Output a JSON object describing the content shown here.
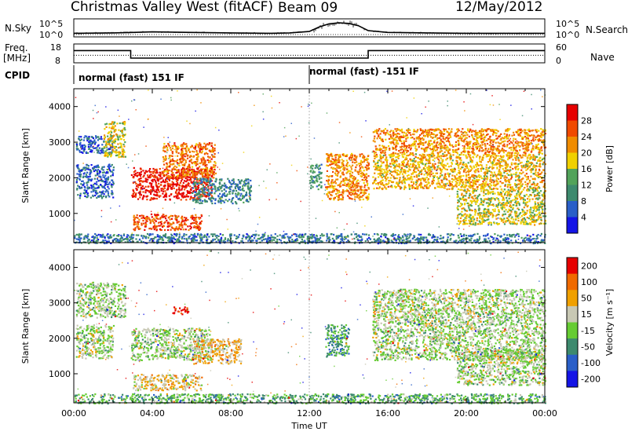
{
  "header": {
    "station": "Christmas Valley West (fitACF)",
    "beam": "Beam 09",
    "date": "12/May/2012"
  },
  "side_labels": {
    "nsky": "N.Sky",
    "freq_l1": "Freq.",
    "freq_l2": "[MHz]",
    "cpid": "CPID",
    "nsearch": "N.Search",
    "nave": "Nave"
  },
  "small_axes": {
    "noise_left_top": "10^5",
    "noise_left_bot": "10^0",
    "noise_right_top": "10^5",
    "noise_right_bot": "10^0",
    "freq_left_top": "18",
    "freq_left_bot": "8",
    "nave_right_top": "60",
    "nave_right_bot": "0"
  },
  "cpid_segments": [
    {
      "label": "normal (fast) 151 IF",
      "start_hour": 0,
      "end_hour": 12
    },
    {
      "label": "normal (fast) -151 IF",
      "start_hour": 12,
      "end_hour": 24
    }
  ],
  "colors": {
    "power_scale": [
      "#1414e6",
      "#2a5fc8",
      "#3d8a6e",
      "#52a35a",
      "#f0d000",
      "#f08c00",
      "#f04a00",
      "#e60000"
    ],
    "velocity_scale": [
      "#1414e6",
      "#2a5fc8",
      "#3d8a6e",
      "#66cc33",
      "#c8c8b4",
      "#f0a000",
      "#f06a00",
      "#e60000"
    ],
    "ground_scatter": "#c8c8b4"
  },
  "chart_data": [
    {
      "type": "line",
      "name": "noise",
      "x_unit": "hour",
      "xlim": [
        0,
        24
      ],
      "series": [
        {
          "name": "N.Sky",
          "x": [
            0,
            2,
            3,
            4,
            6,
            8,
            10,
            11,
            12,
            12.5,
            13,
            13.5,
            14,
            14.5,
            15,
            16,
            18,
            20,
            22,
            24
          ],
          "values": [
            0.2,
            0.22,
            0.25,
            0.28,
            0.25,
            0.22,
            0.2,
            0.22,
            0.3,
            0.55,
            0.72,
            0.78,
            0.75,
            0.62,
            0.35,
            0.25,
            0.22,
            0.2,
            0.2,
            0.2
          ]
        }
      ],
      "ylim": [
        0,
        1
      ],
      "left_ticks": [
        "10^5",
        "10^0"
      ],
      "right_ticks": [
        "10^5",
        "10^0"
      ]
    },
    {
      "type": "line",
      "name": "frequency",
      "x_unit": "hour",
      "xlim": [
        0,
        24
      ],
      "series": [
        {
          "name": "Freq.",
          "x": [
            0,
            2.9,
            2.9,
            15,
            15,
            24
          ],
          "values": [
            14.5,
            14.5,
            10.5,
            10.5,
            14.5,
            14.5
          ]
        },
        {
          "name": "Nave",
          "x": [
            0,
            24
          ],
          "values": [
            12,
            12
          ]
        }
      ],
      "ylim": [
        8,
        18
      ]
    },
    {
      "type": "heatmap",
      "name": "power",
      "xlabel": "",
      "ylabel": "Slant Range [km]",
      "xlim": [
        0,
        24
      ],
      "ylim": [
        180,
        4500
      ],
      "y_ticks": [
        1000,
        2000,
        3000,
        4000
      ],
      "x_ticks": [
        "00:00",
        "04:00",
        "08:00",
        "12:00",
        "16:00",
        "20:00",
        "00:00"
      ],
      "colorbar_label": "Power [dB]",
      "colorbar_ticks": [
        "4",
        "8",
        "12",
        "16",
        "20",
        "24",
        "28"
      ],
      "bands": [
        {
          "h0": 0.1,
          "h1": 2.0,
          "r0": 2700,
          "r1": 3200,
          "v": 0.2
        },
        {
          "h0": 1.5,
          "h1": 2.6,
          "r0": 2600,
          "r1": 3600,
          "v": 0.55
        },
        {
          "h0": 0.1,
          "h1": 2.0,
          "r0": 1450,
          "r1": 2400,
          "v": 0.2
        },
        {
          "h0": 2.9,
          "h1": 7.0,
          "r0": 1400,
          "r1": 2300,
          "v": 0.92
        },
        {
          "h0": 4.5,
          "h1": 7.2,
          "r0": 2000,
          "r1": 3000,
          "v": 0.75
        },
        {
          "h0": 3.0,
          "h1": 6.5,
          "r0": 550,
          "r1": 1000,
          "v": 0.82
        },
        {
          "h0": 6.0,
          "h1": 9.0,
          "r0": 1300,
          "r1": 2000,
          "v": 0.3
        },
        {
          "h0": 12.0,
          "h1": 12.6,
          "r0": 1700,
          "r1": 2400,
          "v": 0.35
        },
        {
          "h0": 12.8,
          "h1": 15.0,
          "r0": 1400,
          "r1": 2700,
          "v": 0.7
        },
        {
          "h0": 15.2,
          "h1": 24,
          "r0": 1700,
          "r1": 2700,
          "v": 0.62
        },
        {
          "h0": 15.2,
          "h1": 24,
          "r0": 2700,
          "r1": 3400,
          "v": 0.7
        },
        {
          "h0": 19.5,
          "h1": 24,
          "r0": 700,
          "r1": 1700,
          "v": 0.55
        },
        {
          "h0": 0,
          "h1": 24,
          "r0": 180,
          "r1": 450,
          "v": 0.25
        }
      ]
    },
    {
      "type": "heatmap",
      "name": "velocity",
      "xlabel": "Time UT",
      "ylabel": "Slant Range [km]",
      "xlim": [
        0,
        24
      ],
      "ylim": [
        180,
        4500
      ],
      "y_ticks": [
        1000,
        2000,
        3000,
        4000
      ],
      "x_ticks": [
        "00:00",
        "04:00",
        "08:00",
        "12:00",
        "16:00",
        "20:00",
        "00:00"
      ],
      "colorbar_label": "Velocity [m s⁻¹]",
      "colorbar_ticks": [
        "200",
        "100",
        "50",
        "15",
        "-15",
        "-50",
        "-100",
        "-200"
      ],
      "bands": [
        {
          "h0": 0.1,
          "h1": 2.6,
          "r0": 2600,
          "r1": 3600,
          "v": 0.5
        },
        {
          "h0": 0.1,
          "h1": 2.0,
          "r0": 1450,
          "r1": 2400,
          "v": 0.5
        },
        {
          "h0": 2.9,
          "h1": 7.0,
          "r0": 1400,
          "r1": 2300,
          "v": 0.5
        },
        {
          "h0": 3.0,
          "h1": 6.5,
          "r0": 550,
          "r1": 1000,
          "v": 0.62
        },
        {
          "h0": 6.0,
          "h1": 8.5,
          "r0": 1300,
          "r1": 2000,
          "v": 0.65
        },
        {
          "h0": 5.0,
          "h1": 5.8,
          "r0": 2700,
          "r1": 2900,
          "v": 0.95
        },
        {
          "h0": 12.8,
          "h1": 14.0,
          "r0": 1500,
          "r1": 2400,
          "v": 0.33
        },
        {
          "h0": 15.2,
          "h1": 24,
          "r0": 1400,
          "r1": 3400,
          "v": 0.5
        },
        {
          "h0": 19.5,
          "h1": 24,
          "r0": 700,
          "r1": 1700,
          "v": 0.5
        },
        {
          "h0": 0,
          "h1": 24,
          "r0": 180,
          "r1": 450,
          "v": 0.38
        }
      ]
    }
  ]
}
